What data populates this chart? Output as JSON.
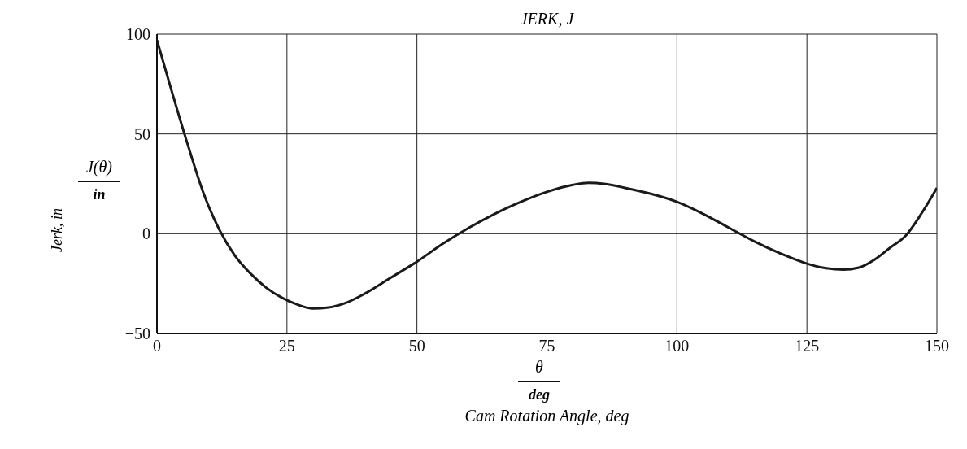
{
  "chart_data": {
    "type": "line",
    "title": "JERK, J",
    "ylabel": "Jerk, in",
    "xlabel": "Cam Rotation Angle, deg",
    "annotations": [
      "J(θ)",
      "in",
      "θ",
      "deg"
    ],
    "x": [
      0,
      3,
      6,
      9,
      12,
      15,
      18,
      21,
      24,
      27,
      30,
      33,
      36,
      40,
      45,
      50,
      55,
      60,
      65,
      70,
      75,
      80,
      83,
      86,
      90,
      95,
      100,
      105,
      110,
      115,
      120,
      125,
      128,
      132,
      135,
      138,
      141,
      144,
      147,
      150
    ],
    "series": [
      {
        "color": "#1a1a1a",
        "values": [
          97,
          70,
          44,
          20,
          2,
          -11,
          -20,
          -27,
          -32,
          -35.5,
          -37.5,
          -37,
          -35,
          -30,
          -22,
          -14,
          -5,
          3,
          10,
          16,
          21,
          24.5,
          25.5,
          25,
          23,
          20,
          16,
          10,
          3,
          -4,
          -10,
          -15,
          -17,
          -18,
          -17,
          -13,
          -7,
          -1,
          10,
          23
        ]
      }
    ],
    "xlim": [
      0,
      150
    ],
    "xticks": [
      0,
      25,
      50,
      75,
      100,
      125,
      150
    ],
    "ylim": [
      -50,
      100
    ],
    "yticks": [
      -50,
      0,
      50,
      100
    ],
    "grid": true,
    "marker": "none",
    "line_style": "solid"
  }
}
